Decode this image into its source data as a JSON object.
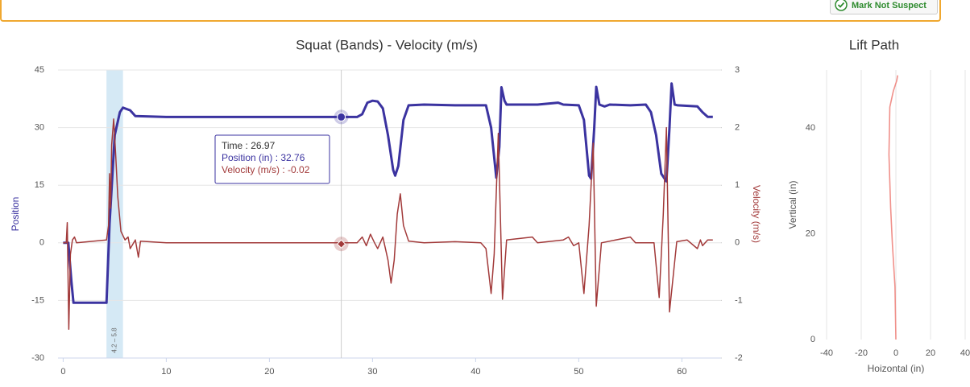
{
  "header": {
    "button": "Mark Not Suspect"
  },
  "chart_data": [
    {
      "type": "line",
      "title": "Squat (Bands) - Velocity (m/s)",
      "y_label": "Position",
      "y2_label": "Velocity (m/s)",
      "xlim": [
        -0.5,
        63.8
      ],
      "xticks": [
        0,
        10,
        20,
        30,
        40,
        50,
        60
      ],
      "ylim": [
        -30,
        45
      ],
      "yticks": [
        -30,
        -15,
        0,
        15,
        30,
        45
      ],
      "y2lim": [
        -2,
        3
      ],
      "y2ticks": [
        -2,
        -1,
        0,
        1,
        2,
        3
      ],
      "grid": true,
      "plot_band": {
        "from": 4.2,
        "to": 5.8,
        "label": "4.2 – 5.8",
        "color": "#d5e9f5"
      },
      "series": [
        {
          "color": "#3b33a0",
          "x": [
            0,
            0.5,
            0.8,
            1,
            4.2,
            4.5,
            5,
            5.5,
            5.8,
            6.5,
            7,
            10,
            20,
            28.5,
            29,
            29.5,
            30,
            30.5,
            31,
            31.5,
            32,
            32.2,
            32.5,
            33,
            33.5,
            35,
            38,
            41,
            41.5,
            42,
            42.3,
            42.5,
            42.8,
            43,
            44,
            46,
            48,
            48.5,
            50,
            50.5,
            51,
            51.2,
            51.5,
            51.7,
            52,
            52.5,
            53,
            55,
            56.5,
            57,
            57.5,
            58,
            58.5,
            58.8,
            59,
            59.3,
            59.6,
            61.5,
            62,
            62.5,
            63
          ],
          "values": [
            0,
            0,
            -10,
            -15.6,
            -15.6,
            5,
            28,
            34,
            35.2,
            34.5,
            33,
            32.76,
            32.76,
            32.76,
            33.5,
            36.5,
            37,
            36.8,
            35,
            28,
            19,
            17.5,
            20,
            32,
            35.8,
            36,
            35.8,
            35.8,
            30,
            17,
            25,
            40.5,
            37,
            36,
            36,
            36,
            36.5,
            36,
            35.8,
            32,
            17.5,
            16.7,
            30,
            40.6,
            36,
            35.5,
            36,
            35.8,
            36,
            34,
            28,
            18,
            16,
            30,
            41.5,
            36,
            35.8,
            35.5,
            34,
            32.8,
            32.8
          ]
        },
        {
          "color": "#a23a3a",
          "axis": "y2",
          "x": [
            0,
            0.3,
            0.4,
            0.55,
            0.7,
            0.9,
            1.1,
            1.3,
            4.2,
            4.4,
            4.5,
            4.6,
            4.7,
            4.9,
            5.1,
            5.3,
            5.6,
            6,
            6.3,
            6.5,
            7,
            7.3,
            7.5,
            10,
            20,
            28.5,
            29,
            29.4,
            29.8,
            30.2,
            30.5,
            31,
            31.5,
            31.8,
            32.1,
            32.4,
            32.7,
            33,
            33.5,
            35,
            38,
            40.5,
            41,
            41.5,
            41.8,
            42.2,
            42.6,
            43,
            45.5,
            46,
            48.5,
            49,
            49.5,
            50,
            50.5,
            51,
            51.4,
            51.7,
            52.2,
            55,
            55.5,
            57.3,
            57.8,
            58.2,
            58.5,
            58.8,
            59.5,
            60.5,
            61.5,
            61.8,
            62,
            62.5,
            63
          ],
          "values": [
            0,
            0,
            0.35,
            -1.5,
            -0.2,
            0.05,
            0.1,
            0,
            0.05,
            0.3,
            1.2,
            0.6,
            1.7,
            2.15,
            1.5,
            0.8,
            0.2,
            0.05,
            0.1,
            -0.1,
            0.05,
            -0.25,
            0.03,
            0,
            0,
            0,
            0.1,
            -0.05,
            0.15,
            0,
            -0.1,
            0.1,
            -0.3,
            -0.7,
            -0.3,
            0.5,
            0.85,
            0.3,
            0.03,
            0,
            0.02,
            0,
            -0.1,
            -0.88,
            -0.2,
            1.9,
            -0.98,
            0.05,
            0.1,
            0,
            0.05,
            0.1,
            -0.05,
            0,
            -0.88,
            0.3,
            1.73,
            -1.1,
            0,
            0.1,
            0,
            0,
            -0.95,
            0.5,
            2.0,
            -1.2,
            0.02,
            0.05,
            -0.1,
            0.05,
            -0.05,
            0.05,
            0.05
          ]
        }
      ],
      "tooltip": {
        "x": 26.97,
        "label": "Time : 26.97",
        "rows": [
          {
            "value": 32.76,
            "label": "Position (in) : 32.76"
          },
          {
            "value": -0.02,
            "label": "Velocity (m/s) : -0.02"
          }
        ]
      }
    },
    {
      "type": "line",
      "title": "Lift Path",
      "x_label": "Hoizontal (in)",
      "y_label": "Vertical (in)",
      "xlim": [
        -40,
        40
      ],
      "xticks": [
        -40,
        -20,
        0,
        20,
        40
      ],
      "ylim": [
        0,
        51
      ],
      "yticks": [
        0,
        20,
        40
      ],
      "grid": true,
      "series": [
        {
          "color": "#f0908a",
          "x": [
            0,
            -0.5,
            -2,
            -3,
            -4,
            -3.5,
            -1.5,
            0.5,
            1
          ],
          "values": [
            0,
            10,
            18,
            25,
            35,
            44,
            47,
            49,
            50
          ]
        }
      ]
    }
  ]
}
